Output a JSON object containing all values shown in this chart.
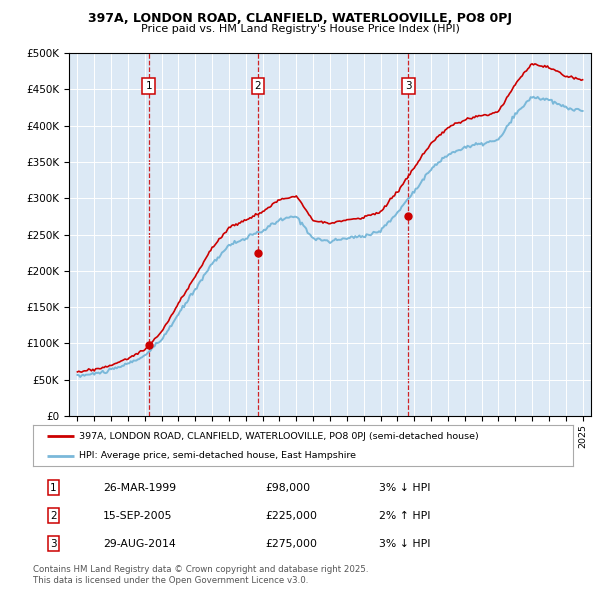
{
  "title1": "397A, LONDON ROAD, CLANFIELD, WATERLOOVILLE, PO8 0PJ",
  "title2": "Price paid vs. HM Land Registry's House Price Index (HPI)",
  "bg_color": "#dce9f5",
  "red_line_label": "397A, LONDON ROAD, CLANFIELD, WATERLOOVILLE, PO8 0PJ (semi-detached house)",
  "blue_line_label": "HPI: Average price, semi-detached house, East Hampshire",
  "sales": [
    {
      "num": 1,
      "date": "26-MAR-1999",
      "price": 98000,
      "year": 1999.23,
      "hpi_pct": "3%",
      "hpi_dir": "↓"
    },
    {
      "num": 2,
      "date": "15-SEP-2005",
      "price": 225000,
      "year": 2005.71,
      "hpi_pct": "2%",
      "hpi_dir": "↑"
    },
    {
      "num": 3,
      "date": "29-AUG-2014",
      "price": 275000,
      "year": 2014.66,
      "hpi_pct": "3%",
      "hpi_dir": "↓"
    }
  ],
  "copyright": "Contains HM Land Registry data © Crown copyright and database right 2025.\nThis data is licensed under the Open Government Licence v3.0.",
  "ylim": [
    0,
    500000
  ],
  "xlim_start": 1994.5,
  "xlim_end": 2025.5
}
